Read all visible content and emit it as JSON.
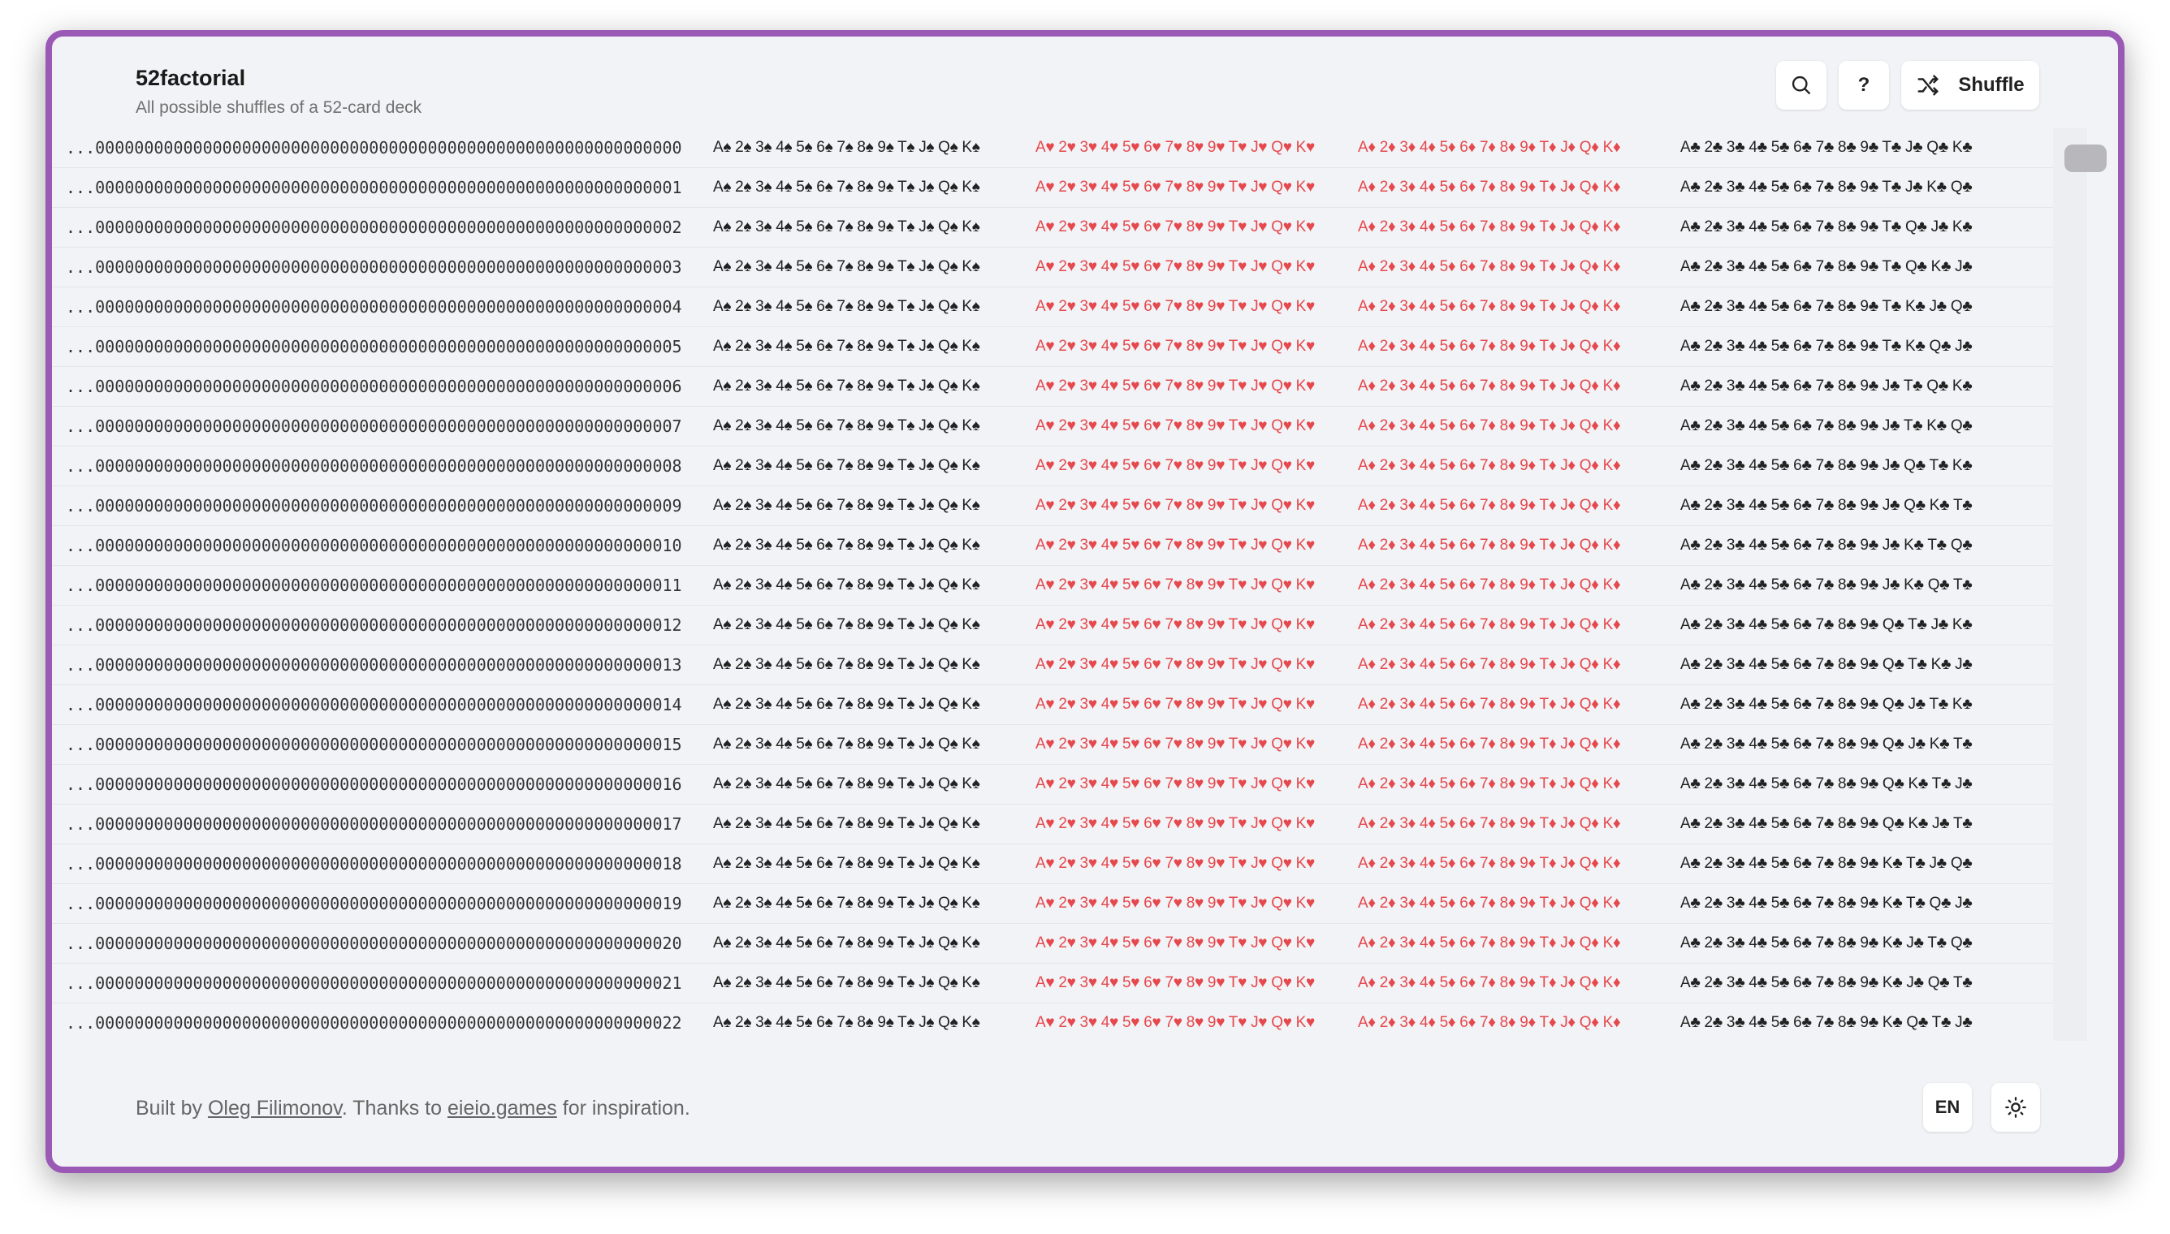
{
  "header": {
    "title": "52factorial",
    "subtitle": "All possible shuffles of a 52-card deck",
    "buttons": {
      "help": "?",
      "shuffle": "Shuffle"
    }
  },
  "rows": [
    {
      "index": "...000000000000000000000000000000000000000000000000000000000000",
      "spades": "A♠ 2♠ 3♠ 4♠ 5♠ 6♠ 7♠ 8♠ 9♠ T♠ J♠ Q♠ K♠",
      "hearts": "A♥ 2♥ 3♥ 4♥ 5♥ 6♥ 7♥ 8♥ 9♥ T♥ J♥ Q♥ K♥",
      "diamonds": "A♦ 2♦ 3♦ 4♦ 5♦ 6♦ 7♦ 8♦ 9♦ T♦ J♦ Q♦ K♦",
      "clubs": "A♣ 2♣ 3♣ 4♣ 5♣ 6♣ 7♣ 8♣ 9♣ T♣ J♣ Q♣ K♣"
    },
    {
      "index": "...000000000000000000000000000000000000000000000000000000000001",
      "spades": "A♠ 2♠ 3♠ 4♠ 5♠ 6♠ 7♠ 8♠ 9♠ T♠ J♠ Q♠ K♠",
      "hearts": "A♥ 2♥ 3♥ 4♥ 5♥ 6♥ 7♥ 8♥ 9♥ T♥ J♥ Q♥ K♥",
      "diamonds": "A♦ 2♦ 3♦ 4♦ 5♦ 6♦ 7♦ 8♦ 9♦ T♦ J♦ Q♦ K♦",
      "clubs": "A♣ 2♣ 3♣ 4♣ 5♣ 6♣ 7♣ 8♣ 9♣ T♣ J♣ K♣ Q♣"
    },
    {
      "index": "...000000000000000000000000000000000000000000000000000000000002",
      "spades": "A♠ 2♠ 3♠ 4♠ 5♠ 6♠ 7♠ 8♠ 9♠ T♠ J♠ Q♠ K♠",
      "hearts": "A♥ 2♥ 3♥ 4♥ 5♥ 6♥ 7♥ 8♥ 9♥ T♥ J♥ Q♥ K♥",
      "diamonds": "A♦ 2♦ 3♦ 4♦ 5♦ 6♦ 7♦ 8♦ 9♦ T♦ J♦ Q♦ K♦",
      "clubs": "A♣ 2♣ 3♣ 4♣ 5♣ 6♣ 7♣ 8♣ 9♣ T♣ Q♣ J♣ K♣"
    },
    {
      "index": "...000000000000000000000000000000000000000000000000000000000003",
      "spades": "A♠ 2♠ 3♠ 4♠ 5♠ 6♠ 7♠ 8♠ 9♠ T♠ J♠ Q♠ K♠",
      "hearts": "A♥ 2♥ 3♥ 4♥ 5♥ 6♥ 7♥ 8♥ 9♥ T♥ J♥ Q♥ K♥",
      "diamonds": "A♦ 2♦ 3♦ 4♦ 5♦ 6♦ 7♦ 8♦ 9♦ T♦ J♦ Q♦ K♦",
      "clubs": "A♣ 2♣ 3♣ 4♣ 5♣ 6♣ 7♣ 8♣ 9♣ T♣ Q♣ K♣ J♣"
    },
    {
      "index": "...000000000000000000000000000000000000000000000000000000000004",
      "spades": "A♠ 2♠ 3♠ 4♠ 5♠ 6♠ 7♠ 8♠ 9♠ T♠ J♠ Q♠ K♠",
      "hearts": "A♥ 2♥ 3♥ 4♥ 5♥ 6♥ 7♥ 8♥ 9♥ T♥ J♥ Q♥ K♥",
      "diamonds": "A♦ 2♦ 3♦ 4♦ 5♦ 6♦ 7♦ 8♦ 9♦ T♦ J♦ Q♦ K♦",
      "clubs": "A♣ 2♣ 3♣ 4♣ 5♣ 6♣ 7♣ 8♣ 9♣ T♣ K♣ J♣ Q♣"
    },
    {
      "index": "...000000000000000000000000000000000000000000000000000000000005",
      "spades": "A♠ 2♠ 3♠ 4♠ 5♠ 6♠ 7♠ 8♠ 9♠ T♠ J♠ Q♠ K♠",
      "hearts": "A♥ 2♥ 3♥ 4♥ 5♥ 6♥ 7♥ 8♥ 9♥ T♥ J♥ Q♥ K♥",
      "diamonds": "A♦ 2♦ 3♦ 4♦ 5♦ 6♦ 7♦ 8♦ 9♦ T♦ J♦ Q♦ K♦",
      "clubs": "A♣ 2♣ 3♣ 4♣ 5♣ 6♣ 7♣ 8♣ 9♣ T♣ K♣ Q♣ J♣"
    },
    {
      "index": "...000000000000000000000000000000000000000000000000000000000006",
      "spades": "A♠ 2♠ 3♠ 4♠ 5♠ 6♠ 7♠ 8♠ 9♠ T♠ J♠ Q♠ K♠",
      "hearts": "A♥ 2♥ 3♥ 4♥ 5♥ 6♥ 7♥ 8♥ 9♥ T♥ J♥ Q♥ K♥",
      "diamonds": "A♦ 2♦ 3♦ 4♦ 5♦ 6♦ 7♦ 8♦ 9♦ T♦ J♦ Q♦ K♦",
      "clubs": "A♣ 2♣ 3♣ 4♣ 5♣ 6♣ 7♣ 8♣ 9♣ J♣ T♣ Q♣ K♣"
    },
    {
      "index": "...000000000000000000000000000000000000000000000000000000000007",
      "spades": "A♠ 2♠ 3♠ 4♠ 5♠ 6♠ 7♠ 8♠ 9♠ T♠ J♠ Q♠ K♠",
      "hearts": "A♥ 2♥ 3♥ 4♥ 5♥ 6♥ 7♥ 8♥ 9♥ T♥ J♥ Q♥ K♥",
      "diamonds": "A♦ 2♦ 3♦ 4♦ 5♦ 6♦ 7♦ 8♦ 9♦ T♦ J♦ Q♦ K♦",
      "clubs": "A♣ 2♣ 3♣ 4♣ 5♣ 6♣ 7♣ 8♣ 9♣ J♣ T♣ K♣ Q♣"
    },
    {
      "index": "...000000000000000000000000000000000000000000000000000000000008",
      "spades": "A♠ 2♠ 3♠ 4♠ 5♠ 6♠ 7♠ 8♠ 9♠ T♠ J♠ Q♠ K♠",
      "hearts": "A♥ 2♥ 3♥ 4♥ 5♥ 6♥ 7♥ 8♥ 9♥ T♥ J♥ Q♥ K♥",
      "diamonds": "A♦ 2♦ 3♦ 4♦ 5♦ 6♦ 7♦ 8♦ 9♦ T♦ J♦ Q♦ K♦",
      "clubs": "A♣ 2♣ 3♣ 4♣ 5♣ 6♣ 7♣ 8♣ 9♣ J♣ Q♣ T♣ K♣"
    },
    {
      "index": "...000000000000000000000000000000000000000000000000000000000009",
      "spades": "A♠ 2♠ 3♠ 4♠ 5♠ 6♠ 7♠ 8♠ 9♠ T♠ J♠ Q♠ K♠",
      "hearts": "A♥ 2♥ 3♥ 4♥ 5♥ 6♥ 7♥ 8♥ 9♥ T♥ J♥ Q♥ K♥",
      "diamonds": "A♦ 2♦ 3♦ 4♦ 5♦ 6♦ 7♦ 8♦ 9♦ T♦ J♦ Q♦ K♦",
      "clubs": "A♣ 2♣ 3♣ 4♣ 5♣ 6♣ 7♣ 8♣ 9♣ J♣ Q♣ K♣ T♣"
    },
    {
      "index": "...000000000000000000000000000000000000000000000000000000000010",
      "spades": "A♠ 2♠ 3♠ 4♠ 5♠ 6♠ 7♠ 8♠ 9♠ T♠ J♠ Q♠ K♠",
      "hearts": "A♥ 2♥ 3♥ 4♥ 5♥ 6♥ 7♥ 8♥ 9♥ T♥ J♥ Q♥ K♥",
      "diamonds": "A♦ 2♦ 3♦ 4♦ 5♦ 6♦ 7♦ 8♦ 9♦ T♦ J♦ Q♦ K♦",
      "clubs": "A♣ 2♣ 3♣ 4♣ 5♣ 6♣ 7♣ 8♣ 9♣ J♣ K♣ T♣ Q♣"
    },
    {
      "index": "...000000000000000000000000000000000000000000000000000000000011",
      "spades": "A♠ 2♠ 3♠ 4♠ 5♠ 6♠ 7♠ 8♠ 9♠ T♠ J♠ Q♠ K♠",
      "hearts": "A♥ 2♥ 3♥ 4♥ 5♥ 6♥ 7♥ 8♥ 9♥ T♥ J♥ Q♥ K♥",
      "diamonds": "A♦ 2♦ 3♦ 4♦ 5♦ 6♦ 7♦ 8♦ 9♦ T♦ J♦ Q♦ K♦",
      "clubs": "A♣ 2♣ 3♣ 4♣ 5♣ 6♣ 7♣ 8♣ 9♣ J♣ K♣ Q♣ T♣"
    },
    {
      "index": "...000000000000000000000000000000000000000000000000000000000012",
      "spades": "A♠ 2♠ 3♠ 4♠ 5♠ 6♠ 7♠ 8♠ 9♠ T♠ J♠ Q♠ K♠",
      "hearts": "A♥ 2♥ 3♥ 4♥ 5♥ 6♥ 7♥ 8♥ 9♥ T♥ J♥ Q♥ K♥",
      "diamonds": "A♦ 2♦ 3♦ 4♦ 5♦ 6♦ 7♦ 8♦ 9♦ T♦ J♦ Q♦ K♦",
      "clubs": "A♣ 2♣ 3♣ 4♣ 5♣ 6♣ 7♣ 8♣ 9♣ Q♣ T♣ J♣ K♣"
    },
    {
      "index": "...000000000000000000000000000000000000000000000000000000000013",
      "spades": "A♠ 2♠ 3♠ 4♠ 5♠ 6♠ 7♠ 8♠ 9♠ T♠ J♠ Q♠ K♠",
      "hearts": "A♥ 2♥ 3♥ 4♥ 5♥ 6♥ 7♥ 8♥ 9♥ T♥ J♥ Q♥ K♥",
      "diamonds": "A♦ 2♦ 3♦ 4♦ 5♦ 6♦ 7♦ 8♦ 9♦ T♦ J♦ Q♦ K♦",
      "clubs": "A♣ 2♣ 3♣ 4♣ 5♣ 6♣ 7♣ 8♣ 9♣ Q♣ T♣ K♣ J♣"
    },
    {
      "index": "...000000000000000000000000000000000000000000000000000000000014",
      "spades": "A♠ 2♠ 3♠ 4♠ 5♠ 6♠ 7♠ 8♠ 9♠ T♠ J♠ Q♠ K♠",
      "hearts": "A♥ 2♥ 3♥ 4♥ 5♥ 6♥ 7♥ 8♥ 9♥ T♥ J♥ Q♥ K♥",
      "diamonds": "A♦ 2♦ 3♦ 4♦ 5♦ 6♦ 7♦ 8♦ 9♦ T♦ J♦ Q♦ K♦",
      "clubs": "A♣ 2♣ 3♣ 4♣ 5♣ 6♣ 7♣ 8♣ 9♣ Q♣ J♣ T♣ K♣"
    },
    {
      "index": "...000000000000000000000000000000000000000000000000000000000015",
      "spades": "A♠ 2♠ 3♠ 4♠ 5♠ 6♠ 7♠ 8♠ 9♠ T♠ J♠ Q♠ K♠",
      "hearts": "A♥ 2♥ 3♥ 4♥ 5♥ 6♥ 7♥ 8♥ 9♥ T♥ J♥ Q♥ K♥",
      "diamonds": "A♦ 2♦ 3♦ 4♦ 5♦ 6♦ 7♦ 8♦ 9♦ T♦ J♦ Q♦ K♦",
      "clubs": "A♣ 2♣ 3♣ 4♣ 5♣ 6♣ 7♣ 8♣ 9♣ Q♣ J♣ K♣ T♣"
    },
    {
      "index": "...000000000000000000000000000000000000000000000000000000000016",
      "spades": "A♠ 2♠ 3♠ 4♠ 5♠ 6♠ 7♠ 8♠ 9♠ T♠ J♠ Q♠ K♠",
      "hearts": "A♥ 2♥ 3♥ 4♥ 5♥ 6♥ 7♥ 8♥ 9♥ T♥ J♥ Q♥ K♥",
      "diamonds": "A♦ 2♦ 3♦ 4♦ 5♦ 6♦ 7♦ 8♦ 9♦ T♦ J♦ Q♦ K♦",
      "clubs": "A♣ 2♣ 3♣ 4♣ 5♣ 6♣ 7♣ 8♣ 9♣ Q♣ K♣ T♣ J♣"
    },
    {
      "index": "...000000000000000000000000000000000000000000000000000000000017",
      "spades": "A♠ 2♠ 3♠ 4♠ 5♠ 6♠ 7♠ 8♠ 9♠ T♠ J♠ Q♠ K♠",
      "hearts": "A♥ 2♥ 3♥ 4♥ 5♥ 6♥ 7♥ 8♥ 9♥ T♥ J♥ Q♥ K♥",
      "diamonds": "A♦ 2♦ 3♦ 4♦ 5♦ 6♦ 7♦ 8♦ 9♦ T♦ J♦ Q♦ K♦",
      "clubs": "A♣ 2♣ 3♣ 4♣ 5♣ 6♣ 7♣ 8♣ 9♣ Q♣ K♣ J♣ T♣"
    },
    {
      "index": "...000000000000000000000000000000000000000000000000000000000018",
      "spades": "A♠ 2♠ 3♠ 4♠ 5♠ 6♠ 7♠ 8♠ 9♠ T♠ J♠ Q♠ K♠",
      "hearts": "A♥ 2♥ 3♥ 4♥ 5♥ 6♥ 7♥ 8♥ 9♥ T♥ J♥ Q♥ K♥",
      "diamonds": "A♦ 2♦ 3♦ 4♦ 5♦ 6♦ 7♦ 8♦ 9♦ T♦ J♦ Q♦ K♦",
      "clubs": "A♣ 2♣ 3♣ 4♣ 5♣ 6♣ 7♣ 8♣ 9♣ K♣ T♣ J♣ Q♣"
    },
    {
      "index": "...000000000000000000000000000000000000000000000000000000000019",
      "spades": "A♠ 2♠ 3♠ 4♠ 5♠ 6♠ 7♠ 8♠ 9♠ T♠ J♠ Q♠ K♠",
      "hearts": "A♥ 2♥ 3♥ 4♥ 5♥ 6♥ 7♥ 8♥ 9♥ T♥ J♥ Q♥ K♥",
      "diamonds": "A♦ 2♦ 3♦ 4♦ 5♦ 6♦ 7♦ 8♦ 9♦ T♦ J♦ Q♦ K♦",
      "clubs": "A♣ 2♣ 3♣ 4♣ 5♣ 6♣ 7♣ 8♣ 9♣ K♣ T♣ Q♣ J♣"
    },
    {
      "index": "...000000000000000000000000000000000000000000000000000000000020",
      "spades": "A♠ 2♠ 3♠ 4♠ 5♠ 6♠ 7♠ 8♠ 9♠ T♠ J♠ Q♠ K♠",
      "hearts": "A♥ 2♥ 3♥ 4♥ 5♥ 6♥ 7♥ 8♥ 9♥ T♥ J♥ Q♥ K♥",
      "diamonds": "A♦ 2♦ 3♦ 4♦ 5♦ 6♦ 7♦ 8♦ 9♦ T♦ J♦ Q♦ K♦",
      "clubs": "A♣ 2♣ 3♣ 4♣ 5♣ 6♣ 7♣ 8♣ 9♣ K♣ J♣ T♣ Q♣"
    },
    {
      "index": "...000000000000000000000000000000000000000000000000000000000021",
      "spades": "A♠ 2♠ 3♠ 4♠ 5♠ 6♠ 7♠ 8♠ 9♠ T♠ J♠ Q♠ K♠",
      "hearts": "A♥ 2♥ 3♥ 4♥ 5♥ 6♥ 7♥ 8♥ 9♥ T♥ J♥ Q♥ K♥",
      "diamonds": "A♦ 2♦ 3♦ 4♦ 5♦ 6♦ 7♦ 8♦ 9♦ T♦ J♦ Q♦ K♦",
      "clubs": "A♣ 2♣ 3♣ 4♣ 5♣ 6♣ 7♣ 8♣ 9♣ K♣ J♣ Q♣ T♣"
    },
    {
      "index": "...000000000000000000000000000000000000000000000000000000000022",
      "spades": "A♠ 2♠ 3♠ 4♠ 5♠ 6♠ 7♠ 8♠ 9♠ T♠ J♠ Q♠ K♠",
      "hearts": "A♥ 2♥ 3♥ 4♥ 5♥ 6♥ 7♥ 8♥ 9♥ T♥ J♥ Q♥ K♥",
      "diamonds": "A♦ 2♦ 3♦ 4♦ 5♦ 6♦ 7♦ 8♦ 9♦ T♦ J♦ Q♦ K♦",
      "clubs": "A♣ 2♣ 3♣ 4♣ 5♣ 6♣ 7♣ 8♣ 9♣ K♣ Q♣ T♣ J♣"
    }
  ],
  "footer": {
    "text_before": "Built by",
    "author": "Oleg Filimonov",
    "text_middle": ". Thanks to",
    "inspiration": "eieio.games",
    "text_after": "for inspiration.",
    "language": "EN"
  }
}
